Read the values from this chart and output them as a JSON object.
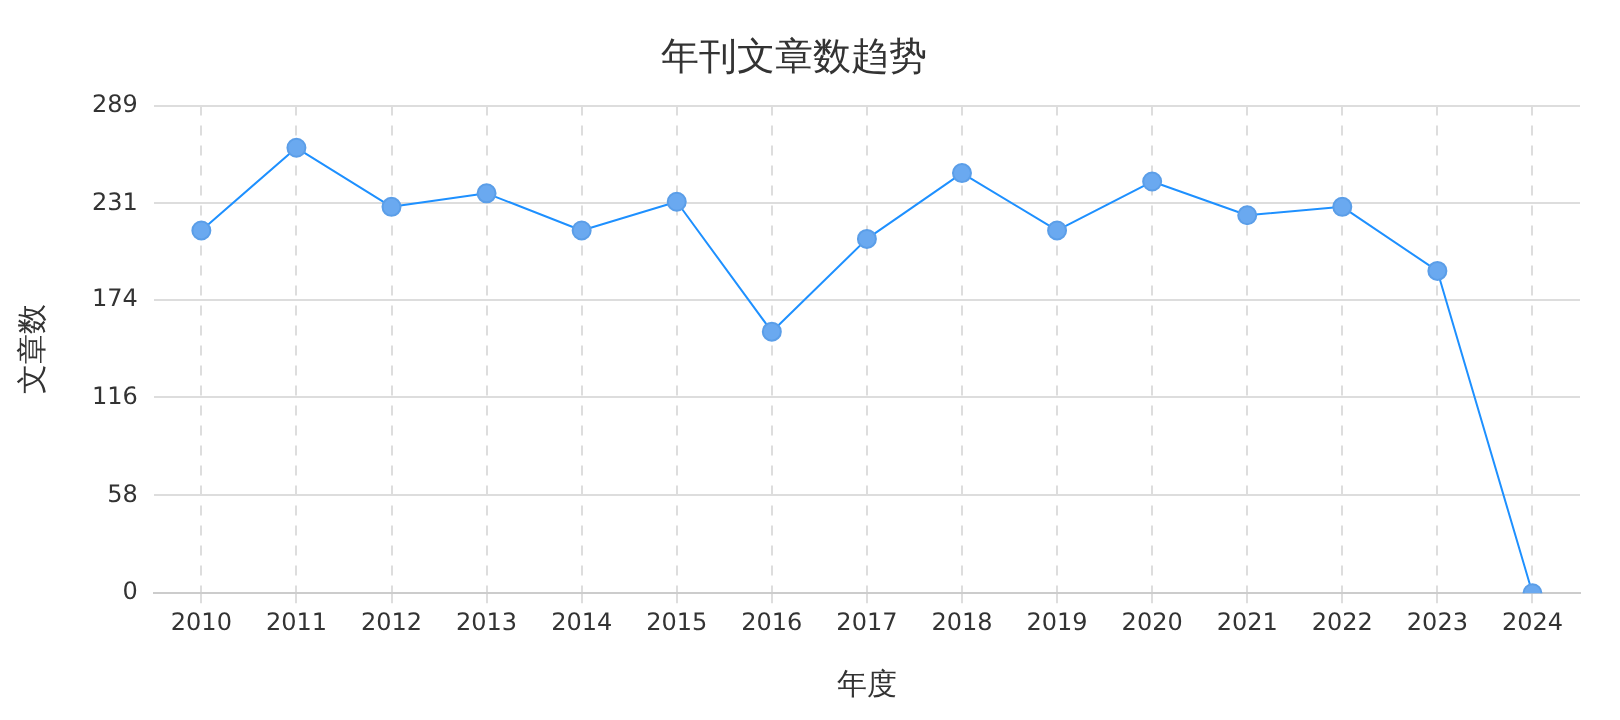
{
  "chart_data": {
    "type": "line",
    "title": "年刊文章数趋势",
    "xlabel": "年度",
    "ylabel": "文章数",
    "categories": [
      "2010",
      "2011",
      "2012",
      "2013",
      "2014",
      "2015",
      "2016",
      "2017",
      "2018",
      "2019",
      "2020",
      "2021",
      "2022",
      "2023",
      "2024"
    ],
    "series": [
      {
        "color": "#1e90ff",
        "values": [
          215,
          264,
          229,
          237,
          215,
          232,
          155,
          210,
          249,
          215,
          244,
          224,
          229,
          191,
          0
        ]
      }
    ],
    "ylim": [
      0,
      289
    ],
    "yticks": [
      0,
      58,
      116,
      174,
      231,
      289
    ],
    "grid": true,
    "marker": "circle",
    "line_style": "solid",
    "legend": false
  }
}
